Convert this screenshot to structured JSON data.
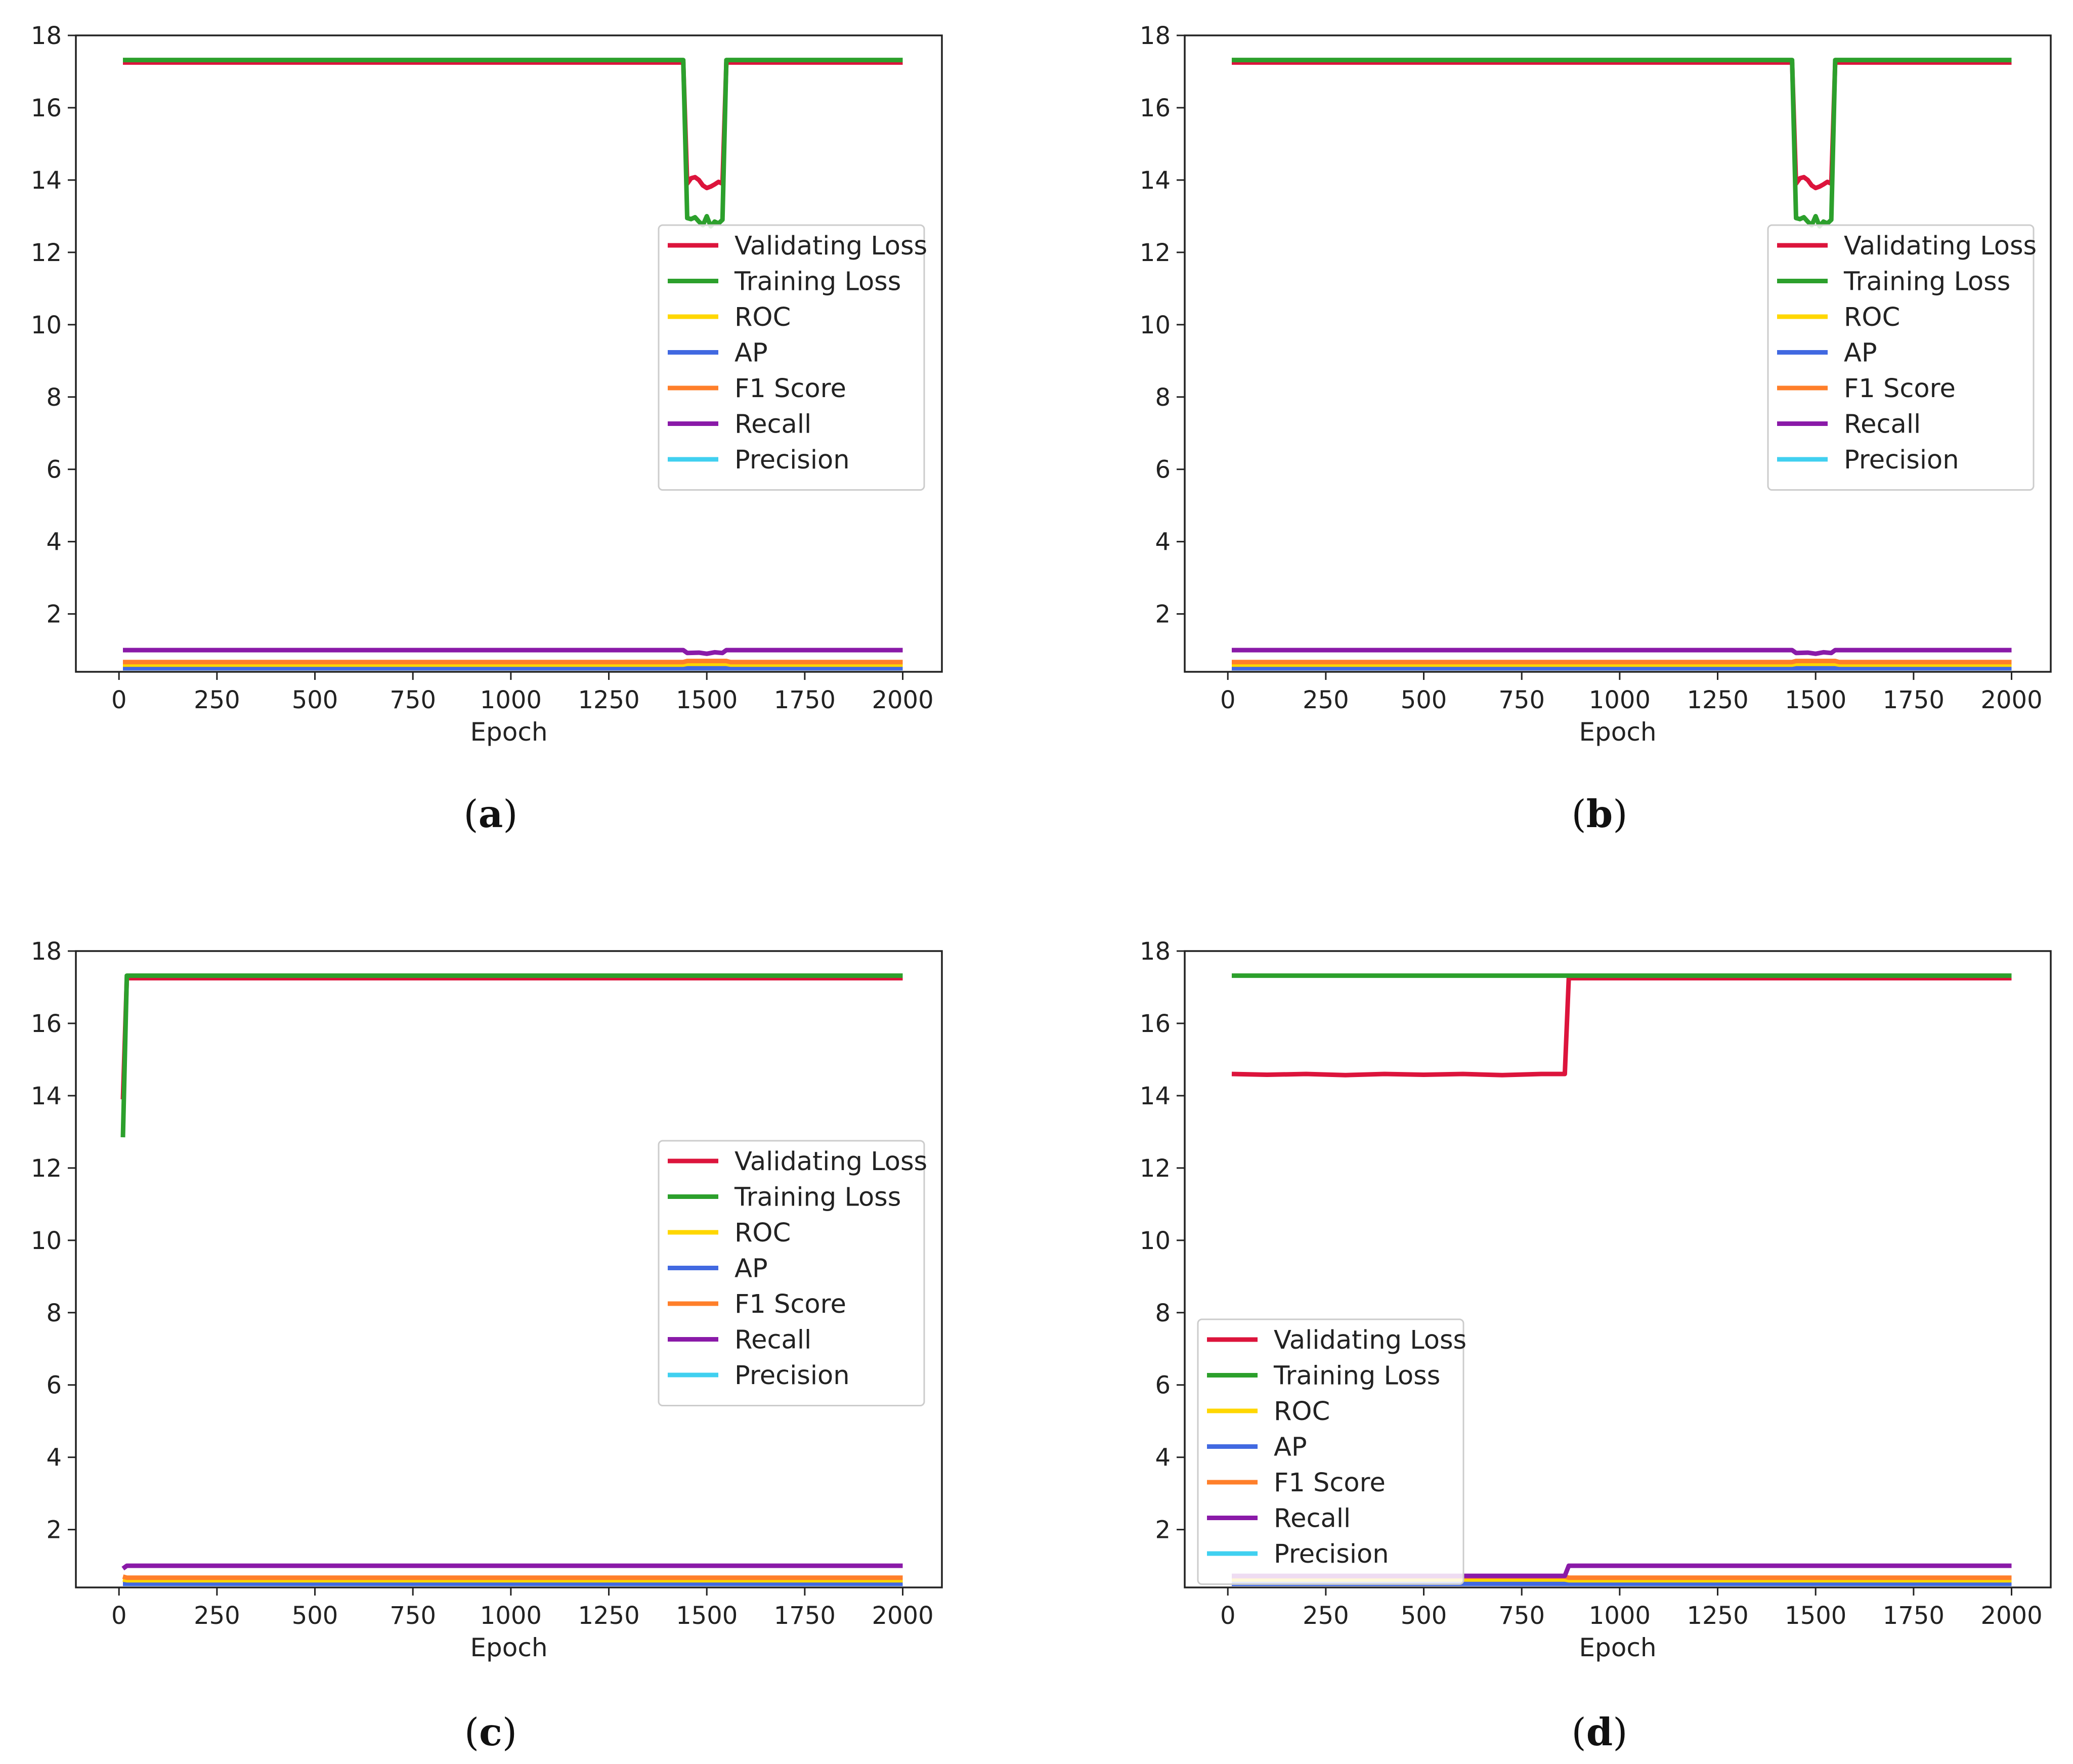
{
  "chart_data": [
    {
      "type": "line",
      "panel": "a",
      "caption": {
        "open": "(",
        "letter": "a",
        "close": ")"
      },
      "xlabel": "Epoch",
      "xlim": [
        -110,
        2100
      ],
      "ylim": [
        0.4,
        18
      ],
      "xticks": [
        0,
        250,
        500,
        750,
        1000,
        1250,
        1500,
        1750,
        2000
      ],
      "yticks": [
        2,
        4,
        6,
        8,
        10,
        12,
        14,
        16,
        18
      ],
      "legend_position": "center-right",
      "series": [
        {
          "name": "Validating Loss",
          "color": "#dc143c",
          "x": [
            10,
            1440,
            1450,
            1460,
            1470,
            1480,
            1490,
            1500,
            1510,
            1520,
            1530,
            1540,
            1550,
            1560,
            2000
          ],
          "y": [
            17.25,
            17.25,
            13.9,
            14.05,
            14.08,
            14.0,
            13.85,
            13.78,
            13.82,
            13.88,
            13.95,
            13.9,
            17.25,
            17.25,
            17.25
          ]
        },
        {
          "name": "Training Loss",
          "color": "#2ca02c",
          "x": [
            10,
            1440,
            1450,
            1460,
            1470,
            1480,
            1490,
            1500,
            1510,
            1520,
            1530,
            1540,
            1550,
            1560,
            2000
          ],
          "y": [
            17.32,
            17.32,
            12.95,
            12.92,
            12.97,
            12.85,
            12.75,
            13.0,
            12.72,
            12.85,
            12.8,
            12.9,
            17.32,
            17.32,
            17.32
          ]
        },
        {
          "name": "ROC",
          "color": "#ffd700",
          "x": [
            10,
            1440,
            1450,
            1550,
            1560,
            2000
          ],
          "y": [
            0.6,
            0.6,
            0.62,
            0.62,
            0.6,
            0.6
          ]
        },
        {
          "name": "AP",
          "color": "#4169e1",
          "x": [
            10,
            2000
          ],
          "y": [
            0.5,
            0.5
          ]
        },
        {
          "name": "F1 Score",
          "color": "#ff7f2a",
          "x": [
            10,
            1440,
            1450,
            1550,
            1560,
            2000
          ],
          "y": [
            0.67,
            0.67,
            0.7,
            0.7,
            0.67,
            0.67
          ]
        },
        {
          "name": "Recall",
          "color": "#8a1aa8",
          "x": [
            10,
            1440,
            1450,
            1480,
            1500,
            1520,
            1540,
            1550,
            2000
          ],
          "y": [
            1.0,
            1.0,
            0.92,
            0.93,
            0.9,
            0.94,
            0.92,
            1.0,
            1.0
          ]
        },
        {
          "name": "Precision",
          "color": "#40d0f0",
          "x": [
            10,
            2000
          ],
          "y": [
            0.5,
            0.5
          ]
        }
      ]
    },
    {
      "type": "line",
      "panel": "b",
      "caption": {
        "open": "(",
        "letter": "b",
        "close": ")"
      },
      "xlabel": "Epoch",
      "xlim": [
        -110,
        2100
      ],
      "ylim": [
        0.4,
        18
      ],
      "xticks": [
        0,
        250,
        500,
        750,
        1000,
        1250,
        1500,
        1750,
        2000
      ],
      "yticks": [
        2,
        4,
        6,
        8,
        10,
        12,
        14,
        16,
        18
      ],
      "legend_position": "center-right",
      "series": [
        {
          "name": "Validating Loss",
          "color": "#dc143c",
          "x": [
            10,
            1440,
            1450,
            1460,
            1470,
            1480,
            1490,
            1500,
            1510,
            1520,
            1530,
            1540,
            1550,
            1560,
            2000
          ],
          "y": [
            17.25,
            17.25,
            13.9,
            14.05,
            14.08,
            14.0,
            13.85,
            13.78,
            13.82,
            13.88,
            13.95,
            13.9,
            17.25,
            17.25,
            17.25
          ]
        },
        {
          "name": "Training Loss",
          "color": "#2ca02c",
          "x": [
            10,
            1440,
            1450,
            1460,
            1470,
            1480,
            1490,
            1500,
            1510,
            1520,
            1530,
            1540,
            1550,
            1560,
            2000
          ],
          "y": [
            17.32,
            17.32,
            12.95,
            12.92,
            12.97,
            12.85,
            12.75,
            13.0,
            12.72,
            12.85,
            12.8,
            12.9,
            17.32,
            17.32,
            17.32
          ]
        },
        {
          "name": "ROC",
          "color": "#ffd700",
          "x": [
            10,
            1440,
            1450,
            1550,
            1560,
            2000
          ],
          "y": [
            0.6,
            0.6,
            0.62,
            0.62,
            0.6,
            0.6
          ]
        },
        {
          "name": "AP",
          "color": "#4169e1",
          "x": [
            10,
            2000
          ],
          "y": [
            0.5,
            0.5
          ]
        },
        {
          "name": "F1 Score",
          "color": "#ff7f2a",
          "x": [
            10,
            1440,
            1450,
            1550,
            1560,
            2000
          ],
          "y": [
            0.67,
            0.67,
            0.7,
            0.7,
            0.67,
            0.67
          ]
        },
        {
          "name": "Recall",
          "color": "#8a1aa8",
          "x": [
            10,
            1440,
            1450,
            1480,
            1500,
            1520,
            1540,
            1550,
            2000
          ],
          "y": [
            1.0,
            1.0,
            0.92,
            0.93,
            0.9,
            0.94,
            0.92,
            1.0,
            1.0
          ]
        },
        {
          "name": "Precision",
          "color": "#40d0f0",
          "x": [
            10,
            2000
          ],
          "y": [
            0.5,
            0.5
          ]
        }
      ]
    },
    {
      "type": "line",
      "panel": "c",
      "caption": {
        "open": "(",
        "letter": "c",
        "close": ")"
      },
      "xlabel": "Epoch",
      "xlim": [
        -110,
        2100
      ],
      "ylim": [
        0.4,
        18
      ],
      "xticks": [
        0,
        250,
        500,
        750,
        1000,
        1250,
        1500,
        1750,
        2000
      ],
      "yticks": [
        2,
        4,
        6,
        8,
        10,
        12,
        14,
        16,
        18
      ],
      "legend_position": "center-right",
      "series": [
        {
          "name": "Validating Loss",
          "color": "#dc143c",
          "x": [
            10,
            20,
            2000
          ],
          "y": [
            13.9,
            17.25,
            17.25
          ]
        },
        {
          "name": "Training Loss",
          "color": "#2ca02c",
          "x": [
            10,
            20,
            2000
          ],
          "y": [
            12.85,
            17.32,
            17.32
          ]
        },
        {
          "name": "ROC",
          "color": "#ffd700",
          "x": [
            10,
            20,
            2000
          ],
          "y": [
            0.62,
            0.6,
            0.6
          ]
        },
        {
          "name": "AP",
          "color": "#4169e1",
          "x": [
            10,
            2000
          ],
          "y": [
            0.5,
            0.5
          ]
        },
        {
          "name": "F1 Score",
          "color": "#ff7f2a",
          "x": [
            10,
            20,
            2000
          ],
          "y": [
            0.7,
            0.67,
            0.67
          ]
        },
        {
          "name": "Recall",
          "color": "#8a1aa8",
          "x": [
            10,
            20,
            2000
          ],
          "y": [
            0.92,
            1.0,
            1.0
          ]
        },
        {
          "name": "Precision",
          "color": "#40d0f0",
          "x": [
            10,
            2000
          ],
          "y": [
            0.5,
            0.5
          ]
        }
      ]
    },
    {
      "type": "line",
      "panel": "d",
      "caption": {
        "open": "(",
        "letter": "d",
        "close": ")"
      },
      "xlabel": "Epoch",
      "xlim": [
        -110,
        2100
      ],
      "ylim": [
        0.4,
        18
      ],
      "xticks": [
        0,
        250,
        500,
        750,
        1000,
        1250,
        1500,
        1750,
        2000
      ],
      "yticks": [
        2,
        4,
        6,
        8,
        10,
        12,
        14,
        16,
        18
      ],
      "legend_position": "lower-left",
      "series": [
        {
          "name": "Validating Loss",
          "color": "#dc143c",
          "x": [
            10,
            100,
            200,
            300,
            400,
            500,
            600,
            700,
            800,
            860,
            870,
            2000
          ],
          "y": [
            14.6,
            14.58,
            14.6,
            14.57,
            14.6,
            14.58,
            14.6,
            14.57,
            14.6,
            14.6,
            17.25,
            17.25
          ]
        },
        {
          "name": "Training Loss",
          "color": "#2ca02c",
          "x": [
            10,
            2000
          ],
          "y": [
            17.32,
            17.32
          ]
        },
        {
          "name": "ROC",
          "color": "#ffd700",
          "x": [
            10,
            860,
            870,
            2000
          ],
          "y": [
            0.62,
            0.62,
            0.6,
            0.6
          ]
        },
        {
          "name": "AP",
          "color": "#4169e1",
          "x": [
            10,
            2000
          ],
          "y": [
            0.5,
            0.5
          ]
        },
        {
          "name": "F1 Score",
          "color": "#ff7f2a",
          "x": [
            10,
            860,
            870,
            2000
          ],
          "y": [
            0.7,
            0.7,
            0.67,
            0.67
          ]
        },
        {
          "name": "Recall",
          "color": "#8a1aa8",
          "x": [
            10,
            860,
            870,
            2000
          ],
          "y": [
            0.72,
            0.72,
            1.0,
            1.0
          ]
        },
        {
          "name": "Precision",
          "color": "#40d0f0",
          "x": [
            10,
            860,
            870,
            2000
          ],
          "y": [
            0.58,
            0.58,
            0.5,
            0.5
          ]
        }
      ]
    }
  ]
}
